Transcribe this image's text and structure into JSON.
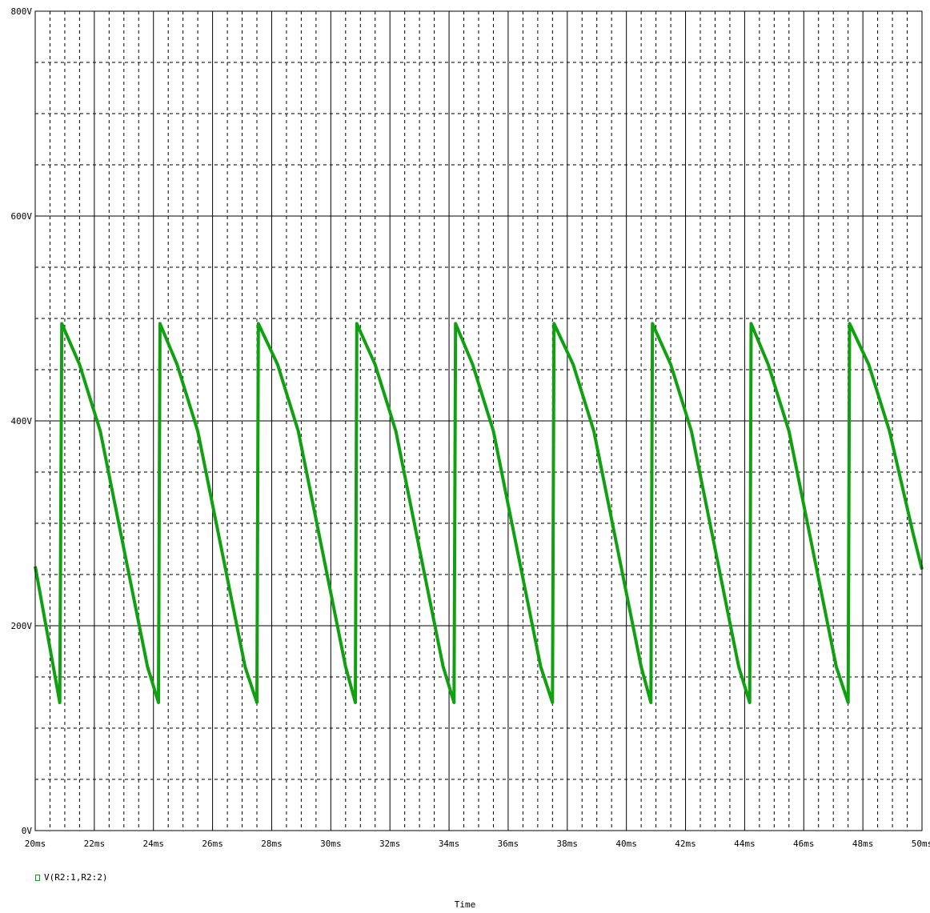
{
  "chart_data": {
    "type": "line",
    "xlabel": "Time",
    "ylabel": "",
    "x_unit": "ms",
    "y_unit": "V",
    "xlim": [
      20,
      50
    ],
    "ylim": [
      0,
      800
    ],
    "x_ticks": [
      "20ms",
      "22ms",
      "24ms",
      "26ms",
      "28ms",
      "30ms",
      "32ms",
      "34ms",
      "36ms",
      "38ms",
      "40ms",
      "42ms",
      "44ms",
      "46ms",
      "48ms",
      "50ms"
    ],
    "y_ticks": [
      "0V",
      "200V",
      "400V",
      "600V",
      "800V"
    ],
    "grid": true,
    "legend_position": "bottom-left",
    "series": [
      {
        "name": "V(R2:1,R2:2)",
        "color": "#11a011",
        "x": [
          20.0,
          20.83,
          20.9,
          21.5,
          22.2,
          23.0,
          23.8,
          24.17,
          24.22,
          24.8,
          25.5,
          26.3,
          27.1,
          27.5,
          27.55,
          28.2,
          28.9,
          29.7,
          30.5,
          30.83,
          30.88,
          31.5,
          32.2,
          33.0,
          33.8,
          34.17,
          34.22,
          34.8,
          35.5,
          36.3,
          37.1,
          37.5,
          37.55,
          38.2,
          38.9,
          39.7,
          40.5,
          40.83,
          40.88,
          41.5,
          42.2,
          43.0,
          43.8,
          44.17,
          44.22,
          44.8,
          45.5,
          46.3,
          47.1,
          47.5,
          47.55,
          48.2,
          48.9,
          49.7,
          50.0
        ],
        "y": [
          258,
          125,
          495,
          455,
          390,
          275,
          160,
          125,
          495,
          455,
          390,
          275,
          160,
          125,
          495,
          455,
          390,
          275,
          160,
          125,
          495,
          455,
          390,
          275,
          160,
          125,
          495,
          455,
          390,
          275,
          160,
          125,
          495,
          455,
          390,
          275,
          160,
          125,
          495,
          455,
          390,
          275,
          160,
          125,
          495,
          455,
          390,
          275,
          160,
          125,
          495,
          455,
          390,
          290,
          255
        ]
      }
    ]
  }
}
